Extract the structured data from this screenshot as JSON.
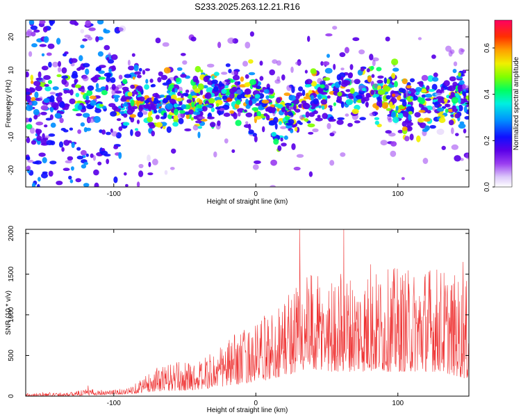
{
  "title": "S233.2025.263.12.21.R16",
  "chart_data": [
    {
      "type": "heatmap",
      "title": "S233.2025.263.12.21.R16",
      "xlabel": "Height of straight line (km)",
      "ylabel": "Frequency (Hz)",
      "xlim": [
        -162,
        150
      ],
      "ylim": [
        -25,
        25
      ],
      "xticks": [
        -100,
        0,
        100
      ],
      "xtick_labels": [
        "-100",
        "0",
        "100"
      ],
      "yticks": [
        20,
        10,
        0,
        -10,
        -20
      ],
      "ytick_labels": [
        "20",
        "10",
        "0",
        "-10",
        "-20"
      ],
      "description_band": {
        "center_hz": [
          [
            -120,
            2
          ],
          [
            -80,
            0
          ],
          [
            -40,
            1
          ],
          [
            -20,
            3
          ],
          [
            0,
            1
          ],
          [
            20,
            -4
          ],
          [
            40,
            2
          ],
          [
            60,
            3
          ],
          [
            80,
            4
          ],
          [
            100,
            1
          ],
          [
            120,
            0
          ],
          [
            150,
            2
          ]
        ],
        "half_width_hz": 6
      },
      "colorbar": {
        "label": "Normalized spectral amplitude",
        "range": [
          0.0,
          0.72
        ],
        "ticks": [
          0.0,
          0.2,
          0.4,
          0.6
        ],
        "tick_labels": [
          "0.0",
          "0.2",
          "0.4",
          "0.6"
        ]
      }
    },
    {
      "type": "line",
      "xlabel": "Height of straight line (km)",
      "ylabel": "SNR (10 * v/v)",
      "xlim": [
        -162,
        150
      ],
      "ylim": [
        0,
        2050
      ],
      "xticks": [
        -100,
        0,
        100
      ],
      "xtick_labels": [
        "-100",
        "0",
        "100"
      ],
      "yticks": [
        0,
        500,
        1000,
        1500,
        2000
      ],
      "ytick_labels": [
        "0",
        "500",
        "1000",
        "1500",
        "2000"
      ],
      "color": "#ee3030",
      "envelope": {
        "x": [
          -162,
          -130,
          -120,
          -100,
          -90,
          -80,
          -70,
          -60,
          -50,
          -40,
          -30,
          -20,
          -10,
          0,
          10,
          20,
          30,
          40,
          50,
          60,
          70,
          80,
          90,
          100,
          110,
          120,
          130,
          140,
          150
        ],
        "upper": [
          40,
          50,
          90,
          80,
          100,
          230,
          350,
          420,
          420,
          430,
          550,
          700,
          820,
          900,
          1050,
          1250,
          1500,
          1500,
          1450,
          1550,
          1500,
          1550,
          1550,
          1600,
          1550,
          1650,
          1600,
          1500,
          1400
        ],
        "lower": [
          0,
          5,
          10,
          20,
          25,
          40,
          60,
          60,
          70,
          80,
          100,
          120,
          150,
          180,
          200,
          250,
          300,
          300,
          300,
          300,
          300,
          300,
          300,
          300,
          300,
          300,
          300,
          250,
          200
        ]
      },
      "peaks": [
        [
          -118,
          130
        ],
        [
          31,
          2050
        ],
        [
          62,
          2050
        ],
        [
          81,
          1620
        ],
        [
          146,
          1650
        ]
      ]
    }
  ]
}
